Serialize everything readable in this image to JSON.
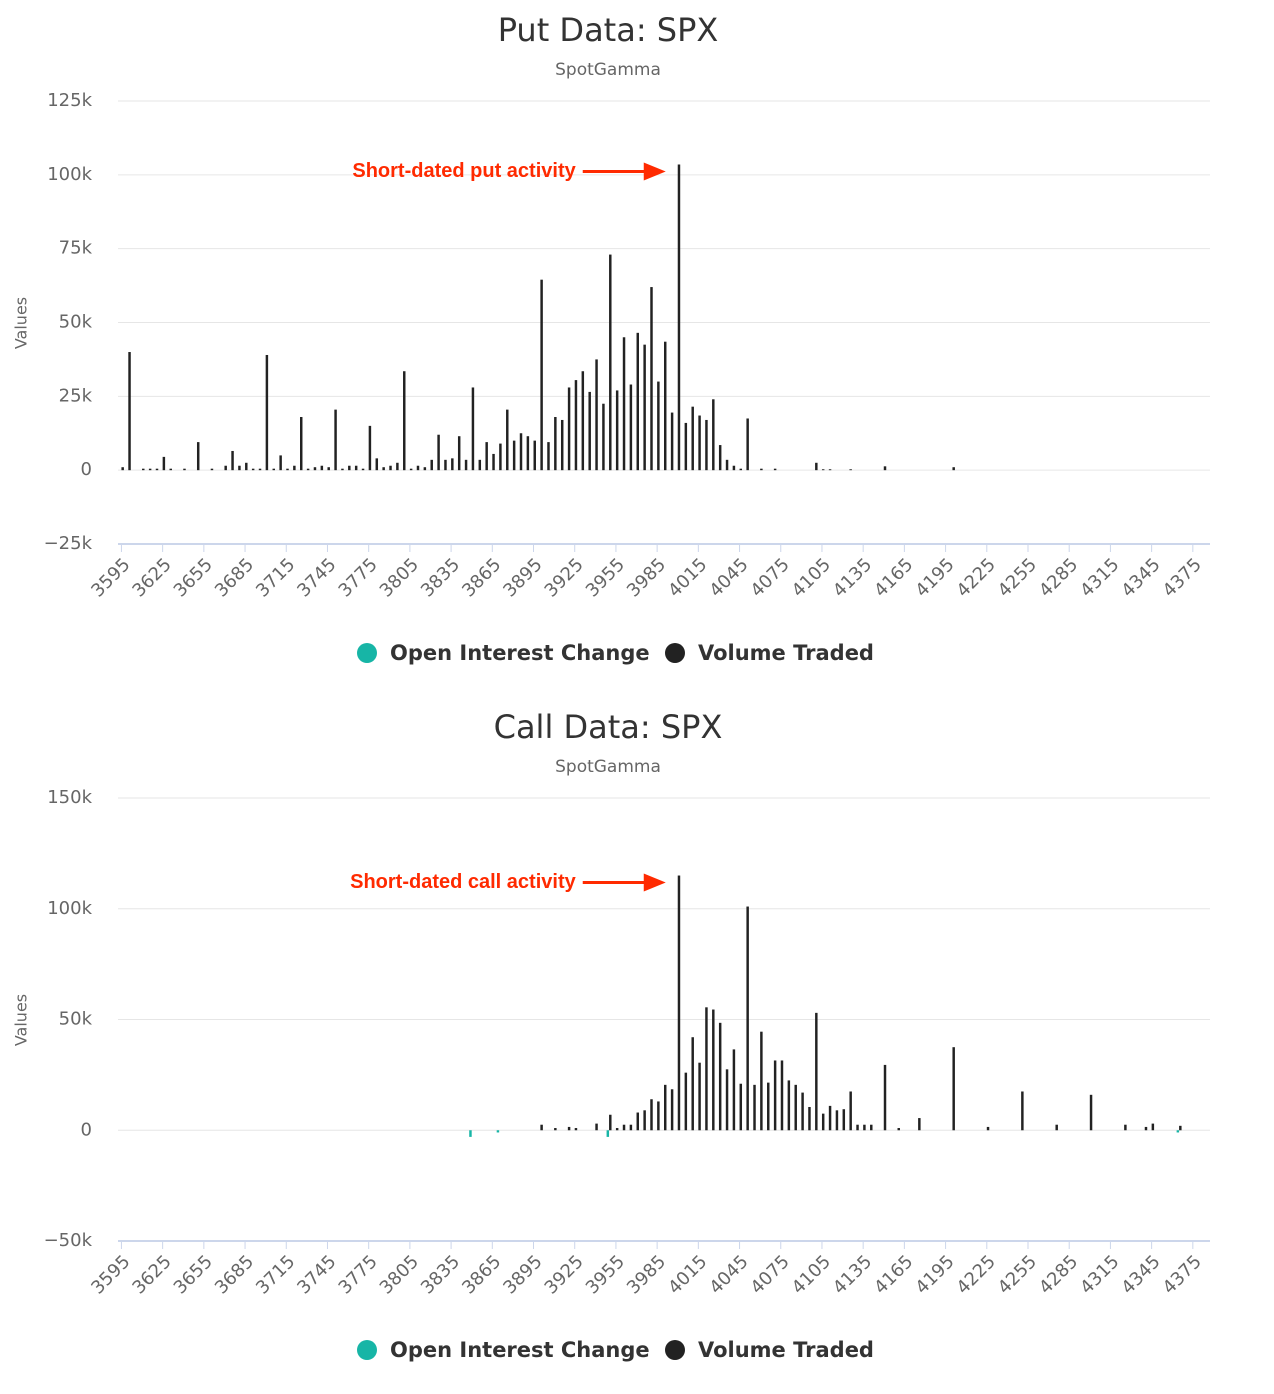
{
  "chart_data": [
    {
      "type": "bar",
      "title": "Put Data: SPX",
      "subtitle": "SpotGamma",
      "y_label": "Values",
      "annotation": "Short-dated put activity",
      "x": [
        3595,
        3600,
        3605,
        3610,
        3615,
        3620,
        3625,
        3630,
        3635,
        3640,
        3645,
        3650,
        3655,
        3660,
        3665,
        3670,
        3675,
        3680,
        3685,
        3690,
        3695,
        3700,
        3705,
        3710,
        3715,
        3720,
        3725,
        3730,
        3735,
        3740,
        3745,
        3750,
        3755,
        3760,
        3765,
        3770,
        3775,
        3780,
        3785,
        3790,
        3795,
        3800,
        3805,
        3810,
        3815,
        3820,
        3825,
        3830,
        3835,
        3840,
        3845,
        3850,
        3855,
        3860,
        3865,
        3870,
        3875,
        3880,
        3885,
        3890,
        3895,
        3900,
        3905,
        3910,
        3915,
        3920,
        3925,
        3930,
        3935,
        3940,
        3945,
        3950,
        3955,
        3960,
        3965,
        3970,
        3975,
        3980,
        3985,
        3990,
        3995,
        4000,
        4005,
        4010,
        4015,
        4020,
        4025,
        4030,
        4035,
        4040,
        4045,
        4050,
        4060,
        4070,
        4100,
        4105,
        4110,
        4125,
        4150,
        4200
      ],
      "series": [
        {
          "name": "Open Interest Change",
          "color": "#17b5a6",
          "values": [
            0,
            0,
            0,
            0,
            0,
            0,
            0,
            0,
            0,
            0,
            0,
            0,
            0,
            0,
            0,
            0,
            0,
            0,
            0,
            0,
            0,
            0,
            0,
            0,
            0,
            0,
            0,
            0,
            0,
            0,
            0,
            0,
            0,
            0,
            0,
            0,
            0,
            0,
            0,
            0,
            0,
            0,
            0,
            0,
            0,
            0,
            0,
            0,
            0,
            0,
            0,
            0,
            0,
            0,
            0,
            0,
            0,
            0,
            0,
            0,
            0,
            0,
            0,
            0,
            0,
            0,
            0,
            0,
            0,
            0,
            0,
            0,
            0,
            0,
            0,
            0,
            0,
            0,
            0,
            0,
            0,
            0,
            0,
            0,
            0,
            0,
            0,
            0,
            0,
            0,
            0,
            0,
            0,
            0,
            0,
            0,
            0,
            0,
            0,
            0
          ]
        },
        {
          "name": "Volume Traded",
          "color": "#222222",
          "values": [
            1000,
            40000,
            0,
            500,
            500,
            500,
            4500,
            500,
            0,
            500,
            0,
            9500,
            0,
            500,
            0,
            1500,
            6500,
            1500,
            2500,
            500,
            500,
            39000,
            500,
            5000,
            500,
            1500,
            18000,
            500,
            1000,
            1500,
            1000,
            20500,
            500,
            1500,
            1500,
            500,
            15000,
            4000,
            1000,
            1500,
            2500,
            33500,
            500,
            1500,
            1000,
            3500,
            12000,
            3500,
            4000,
            11500,
            3500,
            28000,
            3500,
            9500,
            5500,
            9000,
            20500,
            10000,
            12500,
            11500,
            10000,
            64500,
            9500,
            18000,
            17000,
            28000,
            30500,
            33500,
            26500,
            37500,
            22500,
            73000,
            27000,
            45000,
            29000,
            46500,
            42500,
            62000,
            30000,
            43500,
            19500,
            103500,
            16000,
            21500,
            18500,
            17000,
            24000,
            8500,
            3500,
            1500,
            500,
            17500,
            500,
            500,
            2500,
            300,
            300,
            300,
            1300,
            1000
          ]
        }
      ],
      "xlim": [
        3592.5,
        4387.5
      ],
      "xticks": [
        3595,
        3625,
        3655,
        3685,
        3715,
        3745,
        3775,
        3805,
        3835,
        3865,
        3895,
        3925,
        3955,
        3985,
        4015,
        4045,
        4075,
        4105,
        4135,
        4165,
        4195,
        4225,
        4255,
        4285,
        4315,
        4345,
        4375
      ],
      "ylim": [
        -25000,
        125000
      ],
      "yticks": [
        {
          "value": -25000,
          "label": "−25k"
        },
        0,
        {
          "value": 25000,
          "label": "25k"
        },
        {
          "value": 50000,
          "label": "50k"
        },
        {
          "value": 75000,
          "label": "75k"
        },
        {
          "value": 100000,
          "label": "100k"
        },
        {
          "value": 125000,
          "label": "125k"
        }
      ],
      "grid": true
    },
    {
      "type": "bar",
      "title": "Call Data: SPX",
      "subtitle": "SpotGamma",
      "y_label": "Values",
      "annotation": "Short-dated call activity",
      "x": [
        3850,
        3870,
        3900,
        3910,
        3920,
        3925,
        3940,
        3950,
        3955,
        3960,
        3965,
        3970,
        3975,
        3980,
        3985,
        3990,
        3995,
        4000,
        4005,
        4010,
        4015,
        4020,
        4025,
        4030,
        4035,
        4040,
        4045,
        4050,
        4055,
        4060,
        4065,
        4070,
        4075,
        4080,
        4085,
        4090,
        4095,
        4100,
        4105,
        4110,
        4115,
        4120,
        4125,
        4130,
        4135,
        4140,
        4150,
        4160,
        4175,
        4200,
        4225,
        4250,
        4275,
        4300,
        4325,
        4340,
        4345,
        4365
      ],
      "series": [
        {
          "name": "Open Interest Change",
          "color": "#17b5a6",
          "values": [
            -3000,
            -1000,
            0,
            0,
            0,
            0,
            0,
            -3000,
            0,
            0,
            0,
            0,
            0,
            0,
            0,
            0,
            0,
            0,
            0,
            0,
            0,
            0,
            0,
            0,
            0,
            0,
            0,
            0,
            0,
            0,
            0,
            0,
            0,
            0,
            0,
            0,
            0,
            0,
            0,
            0,
            0,
            0,
            0,
            0,
            0,
            0,
            0,
            0,
            0,
            0,
            0,
            0,
            0,
            0,
            0,
            0,
            0,
            -1000
          ]
        },
        {
          "name": "Volume Traded",
          "color": "#222222",
          "values": [
            0,
            0,
            2500,
            1000,
            1500,
            1000,
            3000,
            7000,
            1000,
            2500,
            2500,
            8000,
            9000,
            14000,
            13000,
            20500,
            18500,
            115000,
            26000,
            42000,
            30500,
            55500,
            54500,
            48500,
            27500,
            36500,
            21000,
            101000,
            20500,
            44500,
            21500,
            31500,
            31500,
            22500,
            20500,
            17000,
            10500,
            53000,
            7500,
            11000,
            9000,
            9500,
            17500,
            2500,
            2500,
            2500,
            29500,
            1000,
            5500,
            37500,
            1500,
            17500,
            2500,
            16000,
            2500,
            1500,
            3000,
            2000
          ]
        }
      ],
      "xlim": [
        3592.5,
        4387.5
      ],
      "xticks": [
        3595,
        3625,
        3655,
        3685,
        3715,
        3745,
        3775,
        3805,
        3835,
        3865,
        3895,
        3925,
        3955,
        3985,
        4015,
        4045,
        4075,
        4105,
        4135,
        4165,
        4195,
        4225,
        4255,
        4285,
        4315,
        4345,
        4375
      ],
      "ylim": [
        -50000,
        150000
      ],
      "yticks": [
        {
          "value": -50000,
          "label": "−50k"
        },
        0,
        {
          "value": 50000,
          "label": "50k"
        },
        {
          "value": 100000,
          "label": "100k"
        },
        {
          "value": 150000,
          "label": "150k"
        }
      ],
      "grid": true
    }
  ]
}
